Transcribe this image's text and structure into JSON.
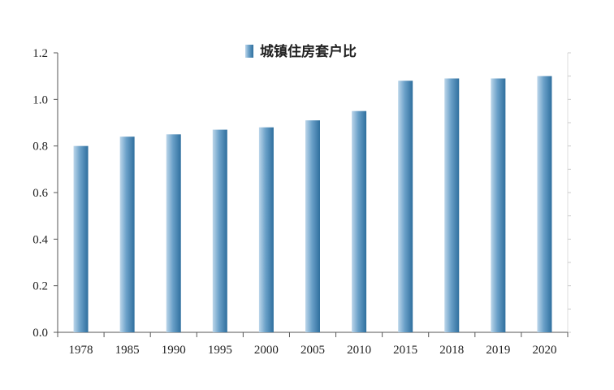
{
  "colors": {
    "bar_light": "#bcd6ea",
    "bar_mid": "#6aa0c8",
    "bar_dark": "#2f6f9e",
    "axis": "#555555"
  },
  "chart_data": {
    "type": "bar",
    "categories": [
      "1978",
      "1985",
      "1990",
      "1995",
      "2000",
      "2005",
      "2010",
      "2015",
      "2018",
      "2019",
      "2020"
    ],
    "series": [
      {
        "name": "城镇住房套户比",
        "values": [
          0.8,
          0.84,
          0.85,
          0.87,
          0.88,
          0.91,
          0.95,
          1.08,
          1.09,
          1.09,
          1.1
        ]
      }
    ],
    "ylim": [
      0,
      1.2
    ],
    "yticks": [
      "0.0",
      "0.2",
      "0.4",
      "0.6",
      "0.8",
      "1.0",
      "1.2"
    ],
    "title": "",
    "xlabel": "",
    "ylabel": "",
    "legend_position": "top-center",
    "grid": false
  }
}
